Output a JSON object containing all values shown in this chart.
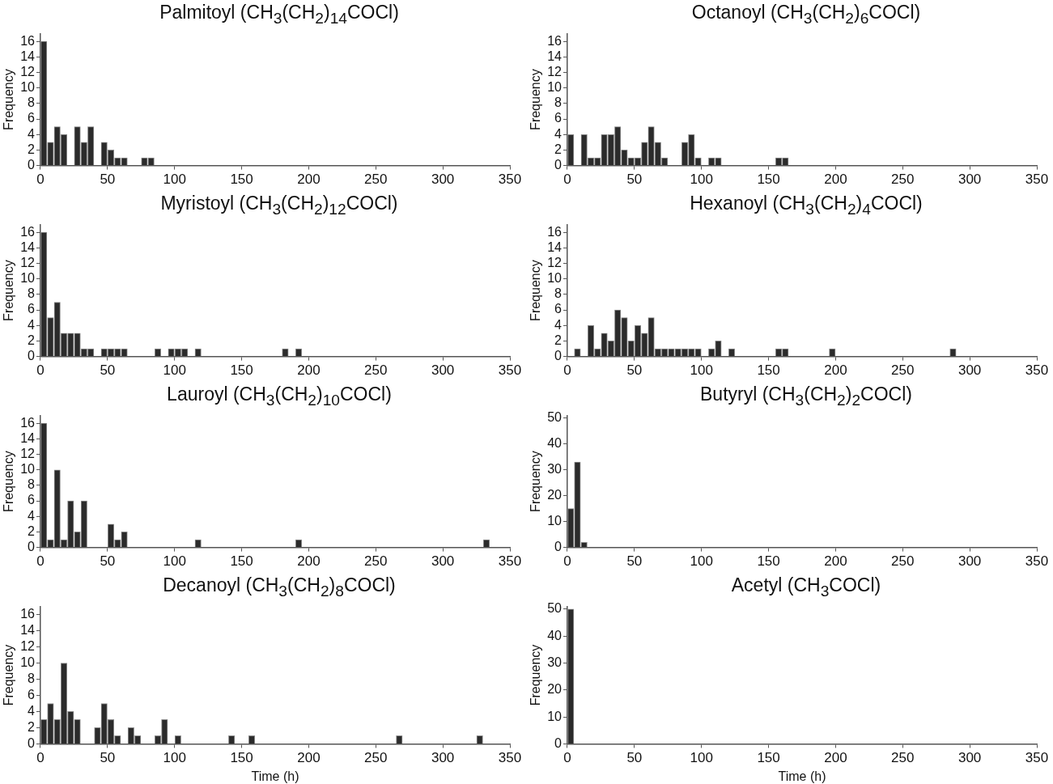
{
  "chart_data": [
    {
      "type": "histogram",
      "title": "Palmitoyl (CH$_{3}$(CH$_{2}$)$_{14}$COCl)",
      "ylabel": "Frequency",
      "color": "#2b2b2b",
      "xlim": [
        0,
        350
      ],
      "xticks": [
        0,
        50,
        100,
        150,
        200,
        250,
        300,
        350
      ],
      "ylim": [
        0,
        17
      ],
      "yticks": [
        0,
        2,
        4,
        6,
        8,
        10,
        12,
        14,
        16
      ],
      "grid": false,
      "bins": [
        0,
        5,
        10,
        15,
        20,
        25,
        30,
        35,
        40,
        45,
        50,
        55,
        60,
        65,
        70,
        75,
        80,
        85
      ],
      "values": [
        16,
        3,
        5,
        4,
        0,
        5,
        3,
        5,
        0,
        3,
        2,
        1,
        1,
        0,
        0,
        1,
        1
      ]
    },
    {
      "type": "histogram",
      "title": "Octanoyl (CH$_{3}$(CH$_{2}$)$_{6}$COCl)",
      "ylabel": "Frequency",
      "color": "#2b2b2b",
      "xlim": [
        0,
        350
      ],
      "xticks": [
        0,
        50,
        100,
        150,
        200,
        250,
        300,
        350
      ],
      "ylim": [
        0,
        17
      ],
      "yticks": [
        0,
        2,
        4,
        6,
        8,
        10,
        12,
        14,
        16
      ],
      "grid": false,
      "bins": [
        0,
        5,
        10,
        15,
        20,
        25,
        30,
        35,
        40,
        45,
        50,
        55,
        60,
        65,
        70,
        75,
        80,
        85,
        90,
        95,
        100,
        105,
        110,
        115,
        120,
        125,
        130,
        135,
        140,
        145,
        150,
        155,
        160,
        165
      ],
      "values": [
        4,
        0,
        4,
        1,
        1,
        4,
        4,
        5,
        2,
        1,
        1,
        3,
        5,
        3,
        1,
        0,
        0,
        3,
        4,
        1,
        0,
        1,
        1,
        0,
        0,
        0,
        0,
        0,
        0,
        0,
        0,
        1,
        1
      ]
    },
    {
      "type": "histogram",
      "title": "Myristoyl (CH$_{3}$(CH$_{2}$)$_{12}$COCl)",
      "ylabel": "Frequency",
      "color": "#2b2b2b",
      "xlim": [
        0,
        350
      ],
      "xticks": [
        0,
        50,
        100,
        150,
        200,
        250,
        300,
        350
      ],
      "ylim": [
        0,
        17
      ],
      "yticks": [
        0,
        2,
        4,
        6,
        8,
        10,
        12,
        14,
        16
      ],
      "grid": false,
      "bins": [
        0,
        5,
        10,
        15,
        20,
        25,
        30,
        35,
        40,
        45,
        50,
        55,
        60,
        65,
        70,
        75,
        80,
        85,
        90,
        95,
        100,
        105,
        110,
        115,
        120,
        125,
        130,
        135,
        140,
        145,
        150,
        155,
        160,
        165,
        170,
        175,
        180,
        185,
        190,
        195
      ],
      "values": [
        16,
        5,
        7,
        3,
        3,
        3,
        1,
        1,
        0,
        1,
        1,
        1,
        1,
        0,
        0,
        0,
        0,
        1,
        0,
        1,
        1,
        1,
        0,
        1,
        0,
        0,
        0,
        0,
        0,
        0,
        0,
        0,
        0,
        0,
        0,
        0,
        1,
        0,
        1
      ]
    },
    {
      "type": "histogram",
      "title": "Hexanoyl (CH$_{3}$(CH$_{2}$)$_{4}$COCl)",
      "ylabel": "Frequency",
      "color": "#2b2b2b",
      "xlim": [
        0,
        350
      ],
      "xticks": [
        0,
        50,
        100,
        150,
        200,
        250,
        300,
        350
      ],
      "ylim": [
        0,
        17
      ],
      "yticks": [
        0,
        2,
        4,
        6,
        8,
        10,
        12,
        14,
        16
      ],
      "grid": false,
      "bins": [
        0,
        5,
        10,
        15,
        20,
        25,
        30,
        35,
        40,
        45,
        50,
        55,
        60,
        65,
        70,
        75,
        80,
        85,
        90,
        95,
        100,
        105,
        110,
        115,
        120,
        125,
        130,
        135,
        140,
        145,
        150,
        155,
        160,
        165,
        170,
        175,
        180,
        185,
        190,
        195,
        200,
        205,
        210,
        215,
        220,
        225,
        230,
        235,
        240,
        245,
        250,
        255,
        260,
        265,
        270,
        275,
        280,
        285,
        290
      ],
      "values": [
        0,
        1,
        0,
        4,
        1,
        3,
        2,
        6,
        5,
        2,
        4,
        3,
        5,
        1,
        1,
        1,
        1,
        1,
        1,
        1,
        0,
        1,
        2,
        0,
        1,
        0,
        0,
        0,
        0,
        0,
        0,
        1,
        1,
        0,
        0,
        0,
        0,
        0,
        0,
        1,
        0,
        0,
        0,
        0,
        0,
        0,
        0,
        0,
        0,
        0,
        0,
        0,
        0,
        0,
        0,
        0,
        0,
        1
      ]
    },
    {
      "type": "histogram",
      "title": "Lauroyl (CH$_{3}$(CH$_{2}$)$_{10}$COCl)",
      "ylabel": "Frequency",
      "color": "#2b2b2b",
      "xlim": [
        0,
        350
      ],
      "xticks": [
        0,
        50,
        100,
        150,
        200,
        250,
        300,
        350
      ],
      "ylim": [
        0,
        17
      ],
      "yticks": [
        0,
        2,
        4,
        6,
        8,
        10,
        12,
        14,
        16
      ],
      "grid": false,
      "bins": [
        0,
        5,
        10,
        15,
        20,
        25,
        30,
        35,
        40,
        45,
        50,
        55,
        60,
        65,
        70,
        75,
        80,
        85,
        90,
        95,
        100,
        105,
        110,
        115,
        120,
        125,
        130,
        135,
        140,
        145,
        150,
        155,
        160,
        165,
        170,
        175,
        180,
        185,
        190,
        195,
        200,
        205,
        210,
        215,
        220,
        225,
        230,
        235,
        240,
        245,
        250,
        255,
        260,
        265,
        270,
        275,
        280,
        285,
        290,
        295,
        300,
        305,
        310,
        315,
        320,
        325,
        330,
        335
      ],
      "values": [
        16,
        1,
        10,
        1,
        6,
        2,
        6,
        0,
        0,
        0,
        3,
        1,
        2,
        0,
        0,
        0,
        0,
        0,
        0,
        0,
        0,
        0,
        0,
        1,
        0,
        0,
        0,
        0,
        0,
        0,
        0,
        0,
        0,
        0,
        0,
        0,
        0,
        0,
        1,
        0,
        0,
        0,
        0,
        0,
        0,
        0,
        0,
        0,
        0,
        0,
        0,
        0,
        0,
        0,
        0,
        0,
        0,
        0,
        0,
        0,
        0,
        0,
        0,
        0,
        0,
        0,
        1
      ]
    },
    {
      "type": "histogram",
      "title": "Butyryl (CH$_{3}$(CH$_{2}$)$_{2}$COCl)",
      "ylabel": "Frequency",
      "color": "#2b2b2b",
      "xlim": [
        0,
        350
      ],
      "xticks": [
        0,
        50,
        100,
        150,
        200,
        250,
        300,
        350
      ],
      "ylim": [
        0,
        51
      ],
      "yticks": [
        0,
        10,
        20,
        30,
        40,
        50
      ],
      "grid": false,
      "bins": [
        0,
        5,
        10,
        15
      ],
      "values": [
        15,
        33,
        2
      ]
    },
    {
      "type": "histogram",
      "title": "Decanoyl (CH$_{3}$(CH$_{2}$)$_{8}$COCl)",
      "xlabel": "Time (h)",
      "ylabel": "Frequency",
      "color": "#2b2b2b",
      "xlim": [
        0,
        350
      ],
      "xticks": [
        0,
        50,
        100,
        150,
        200,
        250,
        300,
        350
      ],
      "ylim": [
        0,
        17
      ],
      "yticks": [
        0,
        2,
        4,
        6,
        8,
        10,
        12,
        14,
        16
      ],
      "grid": false,
      "bins": [
        0,
        5,
        10,
        15,
        20,
        25,
        30,
        35,
        40,
        45,
        50,
        55,
        60,
        65,
        70,
        75,
        80,
        85,
        90,
        95,
        100,
        105,
        110,
        115,
        120,
        125,
        130,
        135,
        140,
        145,
        150,
        155,
        160,
        165,
        170,
        175,
        180,
        185,
        190,
        195,
        200,
        205,
        210,
        215,
        220,
        225,
        230,
        235,
        240,
        245,
        250,
        255,
        260,
        265,
        270,
        275,
        280,
        285,
        290,
        295,
        300,
        305,
        310,
        315,
        320,
        325,
        330
      ],
      "values": [
        3,
        5,
        3,
        10,
        4,
        3,
        0,
        0,
        2,
        5,
        3,
        1,
        0,
        2,
        1,
        0,
        0,
        1,
        3,
        0,
        1,
        0,
        0,
        0,
        0,
        0,
        0,
        0,
        1,
        0,
        0,
        1,
        0,
        0,
        0,
        0,
        0,
        0,
        0,
        0,
        0,
        0,
        0,
        0,
        0,
        0,
        0,
        0,
        0,
        0,
        0,
        0,
        0,
        1,
        0,
        0,
        0,
        0,
        0,
        0,
        0,
        0,
        0,
        0,
        0,
        1
      ]
    },
    {
      "type": "histogram",
      "title": "Acetyl (CH$_{3}$COCl)",
      "xlabel": "Time (h)",
      "ylabel": "Frequency",
      "color": "#2b2b2b",
      "xlim": [
        0,
        350
      ],
      "xticks": [
        0,
        50,
        100,
        150,
        200,
        250,
        300,
        350
      ],
      "ylim": [
        0,
        51
      ],
      "yticks": [
        0,
        10,
        20,
        30,
        40,
        50
      ],
      "grid": false,
      "bins": [
        0,
        5
      ],
      "values": [
        50
      ]
    }
  ]
}
